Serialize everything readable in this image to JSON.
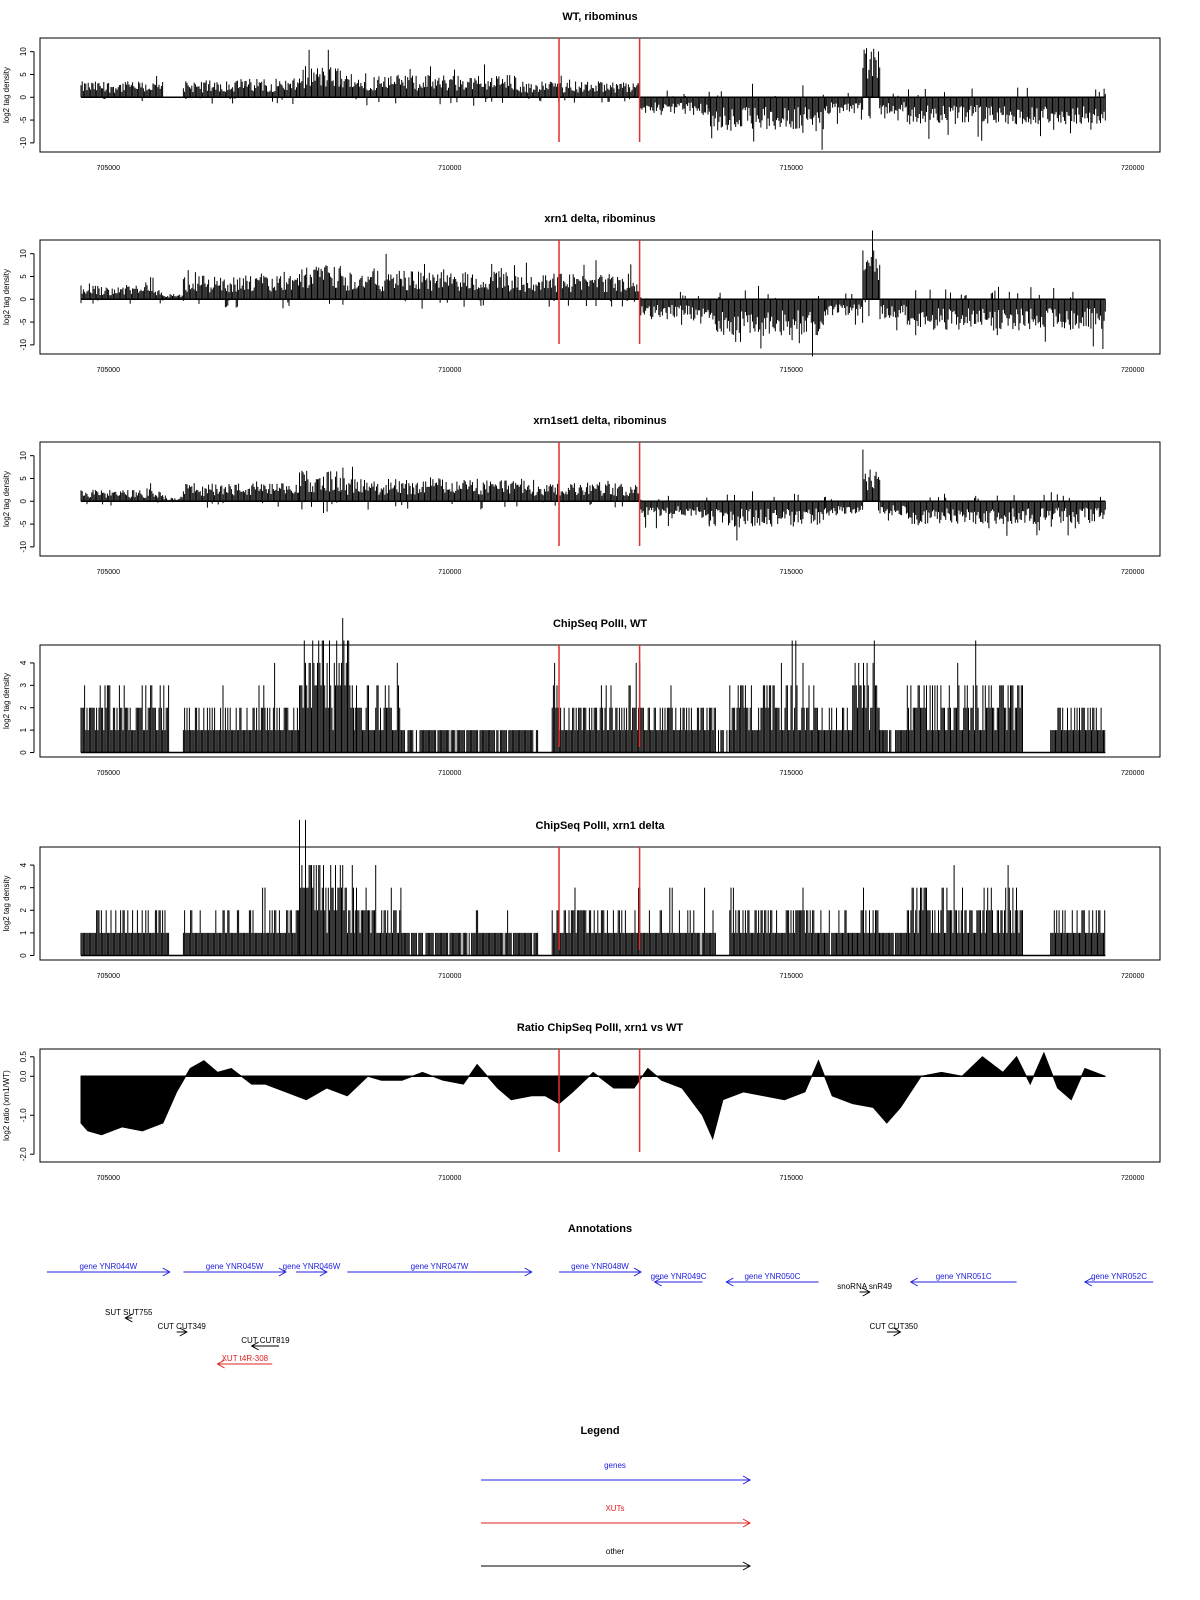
{
  "x_axis": {
    "ticks": [
      705000,
      710000,
      715000,
      720000
    ],
    "tick_labels": [
      "705000",
      "710000",
      "715000",
      "720000"
    ],
    "xlim": [
      704000,
      720400
    ],
    "data_range": [
      704600,
      719600
    ]
  },
  "highlight_lines": {
    "color": "#e03030",
    "x": [
      711600,
      712780
    ]
  },
  "chart_data": [
    {
      "type": "bar",
      "title": "WT, ribominus",
      "ylabel": "log2 tag density",
      "yticks": [
        -10,
        -5,
        0,
        5,
        10
      ],
      "ylim": [
        -12,
        13
      ],
      "segments": [
        {
          "x": [
            704600,
            705800
          ],
          "level": 2.8,
          "sign": 1
        },
        {
          "x": [
            705800,
            706100
          ],
          "level": 0.15,
          "sign": 1
        },
        {
          "x": [
            706100,
            707000
          ],
          "level": 3.0,
          "sign": 1
        },
        {
          "x": [
            707000,
            707800
          ],
          "level": 3.3,
          "sign": 1
        },
        {
          "x": [
            707800,
            708400
          ],
          "level": 5.5,
          "sign": 1
        },
        {
          "x": [
            708400,
            711000
          ],
          "level": 4.0,
          "sign": 1
        },
        {
          "x": [
            711000,
            712780
          ],
          "level": 2.8,
          "sign": 1
        },
        {
          "x": [
            712780,
            713800
          ],
          "level": 3.2,
          "sign": -1
        },
        {
          "x": [
            713800,
            715500
          ],
          "level": 6.0,
          "sign": -1
        },
        {
          "x": [
            715500,
            716050
          ],
          "level": 3.0,
          "sign": -1
        },
        {
          "x": [
            716050,
            716300
          ],
          "level": 9.5,
          "sign": 1
        },
        {
          "x": [
            716300,
            716700
          ],
          "level": 3.0,
          "sign": -1
        },
        {
          "x": [
            716700,
            719600
          ],
          "level": 4.8,
          "sign": -1
        }
      ]
    },
    {
      "type": "bar",
      "title": "xrn1 delta, ribominus",
      "ylabel": "log2 tag density",
      "yticks": [
        -10,
        -5,
        0,
        5,
        10
      ],
      "ylim": [
        -12,
        13
      ],
      "segments": [
        {
          "x": [
            704600,
            705800
          ],
          "level": 2.5,
          "sign": 1
        },
        {
          "x": [
            705800,
            706100
          ],
          "level": 1.0,
          "sign": 1
        },
        {
          "x": [
            706100,
            707800
          ],
          "level": 4.2,
          "sign": 1
        },
        {
          "x": [
            707800,
            708400
          ],
          "level": 6.0,
          "sign": 1
        },
        {
          "x": [
            708400,
            711000
          ],
          "level": 5.0,
          "sign": 1
        },
        {
          "x": [
            711000,
            712780
          ],
          "level": 4.5,
          "sign": 1
        },
        {
          "x": [
            712780,
            713800
          ],
          "level": 3.5,
          "sign": -1
        },
        {
          "x": [
            713800,
            715500
          ],
          "level": 6.5,
          "sign": -1
        },
        {
          "x": [
            715500,
            716050
          ],
          "level": 3.0,
          "sign": -1
        },
        {
          "x": [
            716050,
            716300
          ],
          "level": 9.0,
          "sign": 1
        },
        {
          "x": [
            716300,
            716700
          ],
          "level": 3.5,
          "sign": -1
        },
        {
          "x": [
            716700,
            719600
          ],
          "level": 5.5,
          "sign": -1
        }
      ]
    },
    {
      "type": "bar",
      "title": "xrn1set1 delta, ribominus",
      "ylabel": "log2 tag density",
      "yticks": [
        -10,
        -5,
        0,
        5,
        10
      ],
      "ylim": [
        -12,
        13
      ],
      "segments": [
        {
          "x": [
            704600,
            705800
          ],
          "level": 2.0,
          "sign": 1
        },
        {
          "x": [
            705800,
            706100
          ],
          "level": 0.8,
          "sign": 1
        },
        {
          "x": [
            706100,
            707800
          ],
          "level": 3.2,
          "sign": 1
        },
        {
          "x": [
            707800,
            708400
          ],
          "level": 5.5,
          "sign": 1
        },
        {
          "x": [
            708400,
            711000
          ],
          "level": 4.0,
          "sign": 1
        },
        {
          "x": [
            711000,
            712780
          ],
          "level": 3.2,
          "sign": 1
        },
        {
          "x": [
            712780,
            713800
          ],
          "level": 3.0,
          "sign": -1
        },
        {
          "x": [
            713800,
            715500
          ],
          "level": 4.5,
          "sign": -1
        },
        {
          "x": [
            715500,
            716050
          ],
          "level": 2.5,
          "sign": -1
        },
        {
          "x": [
            716050,
            716300
          ],
          "level": 6.5,
          "sign": 1
        },
        {
          "x": [
            716300,
            716700
          ],
          "level": 2.5,
          "sign": -1
        },
        {
          "x": [
            716700,
            719600
          ],
          "level": 4.0,
          "sign": -1
        }
      ]
    },
    {
      "type": "bar",
      "title": "ChipSeq PolII, WT",
      "ylabel": "log2 tag density",
      "yticks": [
        0,
        1,
        2,
        3,
        4
      ],
      "ylim": [
        -0.2,
        4.8
      ],
      "segments": [
        {
          "x": [
            704600,
            705900
          ],
          "level": 2.3,
          "sign": 1
        },
        {
          "x": [
            705900,
            706100
          ],
          "level": 0,
          "sign": 1
        },
        {
          "x": [
            706100,
            707400
          ],
          "level": 1.6,
          "sign": 1
        },
        {
          "x": [
            707400,
            707800
          ],
          "level": 2.0,
          "sign": 1
        },
        {
          "x": [
            707800,
            708600
          ],
          "level": 4.0,
          "sign": 1
        },
        {
          "x": [
            708600,
            709300
          ],
          "level": 2.6,
          "sign": 1
        },
        {
          "x": [
            709300,
            711300
          ],
          "level": 1.0,
          "sign": 1
        },
        {
          "x": [
            711300,
            711500
          ],
          "level": 0,
          "sign": 1
        },
        {
          "x": [
            711500,
            712800
          ],
          "level": 2.1,
          "sign": 1
        },
        {
          "x": [
            712800,
            713900
          ],
          "level": 1.8,
          "sign": 1
        },
        {
          "x": [
            713900,
            714100
          ],
          "level": 0.6,
          "sign": 1
        },
        {
          "x": [
            714100,
            715400
          ],
          "level": 2.7,
          "sign": 1
        },
        {
          "x": [
            715400,
            715900
          ],
          "level": 1.4,
          "sign": 1
        },
        {
          "x": [
            715900,
            716300
          ],
          "level": 3.2,
          "sign": 1
        },
        {
          "x": [
            716300,
            716700
          ],
          "level": 1.0,
          "sign": 1
        },
        {
          "x": [
            716700,
            718400
          ],
          "level": 2.4,
          "sign": 1
        },
        {
          "x": [
            718400,
            718800
          ],
          "level": 0,
          "sign": 1
        },
        {
          "x": [
            718800,
            719600
          ],
          "level": 1.8,
          "sign": 1
        }
      ]
    },
    {
      "type": "bar",
      "title": "ChipSeq PolII, xrn1 delta",
      "ylabel": "log2 tag density",
      "yticks": [
        0,
        1,
        2,
        3,
        4
      ],
      "ylim": [
        -0.2,
        4.8
      ],
      "segments": [
        {
          "x": [
            704600,
            705900
          ],
          "level": 1.5,
          "sign": 1
        },
        {
          "x": [
            705900,
            706100
          ],
          "level": 0,
          "sign": 1
        },
        {
          "x": [
            706100,
            707400
          ],
          "level": 1.6,
          "sign": 1
        },
        {
          "x": [
            707400,
            707800
          ],
          "level": 1.8,
          "sign": 1
        },
        {
          "x": [
            707800,
            708600
          ],
          "level": 3.6,
          "sign": 1
        },
        {
          "x": [
            708600,
            709300
          ],
          "level": 2.3,
          "sign": 1
        },
        {
          "x": [
            709300,
            711300
          ],
          "level": 1.1,
          "sign": 1
        },
        {
          "x": [
            711300,
            711500
          ],
          "level": 0,
          "sign": 1
        },
        {
          "x": [
            711500,
            712800
          ],
          "level": 1.9,
          "sign": 1
        },
        {
          "x": [
            712800,
            713900
          ],
          "level": 1.4,
          "sign": 1
        },
        {
          "x": [
            713900,
            714100
          ],
          "level": 0.4,
          "sign": 1
        },
        {
          "x": [
            714100,
            715400
          ],
          "level": 1.9,
          "sign": 1
        },
        {
          "x": [
            715400,
            715900
          ],
          "level": 1.3,
          "sign": 1
        },
        {
          "x": [
            715900,
            716300
          ],
          "level": 1.8,
          "sign": 1
        },
        {
          "x": [
            716300,
            716700
          ],
          "level": 1.0,
          "sign": 1
        },
        {
          "x": [
            716700,
            718400
          ],
          "level": 2.4,
          "sign": 1
        },
        {
          "x": [
            718400,
            718800
          ],
          "level": 0,
          "sign": 1
        },
        {
          "x": [
            718800,
            719600
          ],
          "level": 1.6,
          "sign": 1
        }
      ]
    },
    {
      "type": "area",
      "title": "Ratio ChipSeq PolII, xrn1 vs WT",
      "ylabel": "log2 ratio (xrn1/WT)",
      "yticks": [
        -2.0,
        -1.0,
        0.0,
        0.5
      ],
      "ytick_labels": [
        "-2.0",
        "-1.0",
        "0.0",
        "0.5"
      ],
      "ylim": [
        -2.2,
        0.7
      ],
      "x": [
        704600,
        704700,
        704900,
        705200,
        705500,
        705800,
        706000,
        706200,
        706400,
        706600,
        706800,
        707100,
        707300,
        707600,
        707900,
        708200,
        708500,
        708800,
        709000,
        709300,
        709600,
        709900,
        710200,
        710400,
        710700,
        710900,
        711200,
        711400,
        711600,
        711800,
        712100,
        712400,
        712700,
        712900,
        713100,
        713400,
        713700,
        713850,
        714000,
        714300,
        714600,
        714900,
        715200,
        715400,
        715600,
        715900,
        716200,
        716400,
        716600,
        716900,
        717200,
        717500,
        717800,
        718100,
        718300,
        718500,
        718700,
        718900,
        719100,
        719300,
        719600
      ],
      "y": [
        -1.2,
        -1.4,
        -1.5,
        -1.3,
        -1.4,
        -1.2,
        -0.4,
        0.2,
        0.4,
        0.1,
        0.2,
        -0.2,
        -0.2,
        -0.4,
        -0.6,
        -0.3,
        -0.5,
        0.0,
        -0.1,
        -0.1,
        0.1,
        -0.1,
        -0.2,
        0.3,
        -0.3,
        -0.6,
        -0.5,
        -0.5,
        -0.7,
        -0.4,
        0.1,
        -0.3,
        -0.3,
        0.2,
        -0.1,
        -0.3,
        -1.0,
        -1.6,
        -0.6,
        -0.4,
        -0.5,
        -0.6,
        -0.4,
        0.4,
        -0.5,
        -0.7,
        -0.8,
        -1.2,
        -0.8,
        0.0,
        0.1,
        0.0,
        0.5,
        0.1,
        0.5,
        -0.2,
        0.6,
        -0.3,
        -0.6,
        0.2,
        0.0
      ]
    }
  ],
  "annotations": {
    "title": "Annotations",
    "items": [
      {
        "label": "gene YNR044W",
        "x": [
          704100,
          705900
        ],
        "dir": "right",
        "color": "#2020e0",
        "row": 0
      },
      {
        "label": "gene YNR045W",
        "x": [
          706100,
          707600
        ],
        "dir": "right",
        "color": "#2020e0",
        "row": 0
      },
      {
        "label": "gene YNR046W",
        "x": [
          707750,
          708200
        ],
        "dir": "right",
        "color": "#2020e0",
        "row": 0
      },
      {
        "label": "gene YNR047W",
        "x": [
          708500,
          711200
        ],
        "dir": "right",
        "color": "#2020e0",
        "row": 0
      },
      {
        "label": "gene YNR048W",
        "x": [
          711600,
          712800
        ],
        "dir": "right",
        "color": "#2020e0",
        "row": 0
      },
      {
        "label": "gene YNR049C",
        "x": [
          713000,
          713700
        ],
        "dir": "left",
        "color": "#2020e0",
        "row": 1
      },
      {
        "label": "gene YNR050C",
        "x": [
          714050,
          715400
        ],
        "dir": "left",
        "color": "#2020e0",
        "row": 1
      },
      {
        "label": "snoRNA snR49",
        "x": [
          716000,
          716150
        ],
        "dir": "right",
        "color": "#000000",
        "row": 2
      },
      {
        "label": "gene YNR051C",
        "x": [
          716750,
          718300
        ],
        "dir": "left",
        "color": "#2020e0",
        "row": 1
      },
      {
        "label": "gene YNR052C",
        "x": [
          719300,
          720300
        ],
        "dir": "left",
        "color": "#2020e0",
        "row": 1
      },
      {
        "label": "SUT SUT755",
        "x": [
          705250,
          705350
        ],
        "dir": "left",
        "color": "#000000",
        "row": 4
      },
      {
        "label": "CUT CUT349",
        "x": [
          706000,
          706150
        ],
        "dir": "right",
        "color": "#000000",
        "row": 5
      },
      {
        "label": "CUT CUT819",
        "x": [
          707100,
          707500
        ],
        "dir": "left",
        "color": "#000000",
        "row": 6
      },
      {
        "label": "XUT t4R-308",
        "x": [
          706600,
          707400
        ],
        "dir": "left",
        "color": "#e02020",
        "row": 7
      },
      {
        "label": "CUT CUT350",
        "x": [
          716400,
          716600
        ],
        "dir": "right",
        "color": "#000000",
        "row": 5
      }
    ]
  },
  "legend": {
    "title": "Legend",
    "items": [
      {
        "label": "genes",
        "color": "#2020e0"
      },
      {
        "label": "XUTs",
        "color": "#e02020"
      },
      {
        "label": "other",
        "color": "#000000"
      }
    ]
  }
}
